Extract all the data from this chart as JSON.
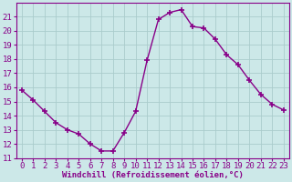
{
  "x": [
    0,
    1,
    2,
    3,
    4,
    5,
    6,
    7,
    8,
    9,
    10,
    11,
    12,
    13,
    14,
    15,
    16,
    17,
    18,
    19,
    20,
    21,
    22,
    23
  ],
  "y": [
    15.8,
    15.1,
    14.3,
    13.5,
    13.0,
    12.7,
    12.0,
    11.5,
    11.5,
    12.8,
    14.3,
    17.9,
    20.8,
    21.3,
    21.5,
    20.3,
    20.2,
    19.4,
    18.3,
    17.6,
    16.5,
    15.5,
    14.8,
    14.4
  ],
  "line_color": "#880088",
  "marker": "+",
  "marker_size": 4,
  "bg_color": "#cce8e8",
  "grid_color": "#aacccc",
  "xlabel": "Windchill (Refroidissement éolien,°C)",
  "xlabel_color": "#880088",
  "tick_color": "#880088",
  "ylim": [
    11,
    22
  ],
  "xlim": [
    -0.5,
    23.5
  ],
  "yticks": [
    11,
    12,
    13,
    14,
    15,
    16,
    17,
    18,
    19,
    20,
    21
  ],
  "xticks": [
    0,
    1,
    2,
    3,
    4,
    5,
    6,
    7,
    8,
    9,
    10,
    11,
    12,
    13,
    14,
    15,
    16,
    17,
    18,
    19,
    20,
    21,
    22,
    23
  ],
  "line_width": 1.0,
  "font_size": 6.5
}
